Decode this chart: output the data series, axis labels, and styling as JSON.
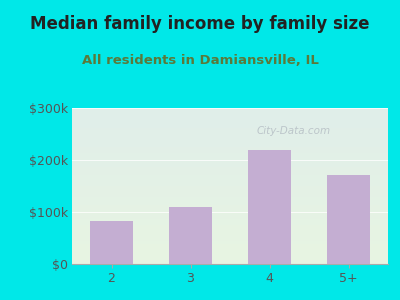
{
  "title": "Median family income by family size",
  "subtitle": "All residents in Damiansville, IL",
  "categories": [
    "2",
    "3",
    "4",
    "5+"
  ],
  "values": [
    82000,
    110000,
    220000,
    172000
  ],
  "bar_color": "#c4aed2",
  "ylim": [
    0,
    300000
  ],
  "yticks": [
    0,
    100000,
    200000,
    300000
  ],
  "ytick_labels": [
    "$0",
    "$100k",
    "$200k",
    "$300k"
  ],
  "background_outer": "#00e8e8",
  "background_inner_top": "#e0eeea",
  "background_inner_bottom": "#e8f5e2",
  "title_color": "#222222",
  "subtitle_color": "#5a7a3a",
  "tick_color": "#555555",
  "watermark": "City-Data.com",
  "title_fontsize": 12,
  "subtitle_fontsize": 9.5
}
